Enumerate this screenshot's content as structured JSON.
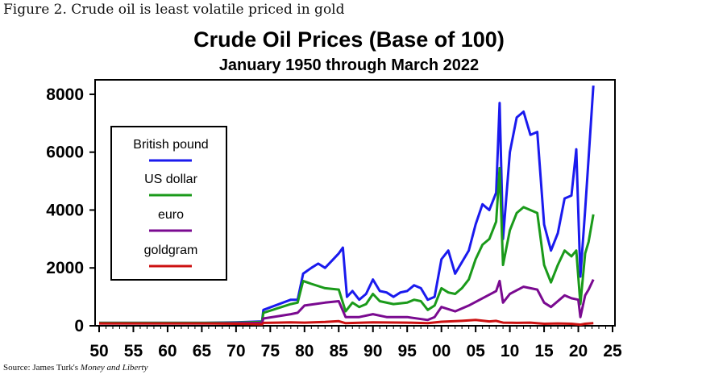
{
  "caption": "Figure 2. Crude oil is least volatile priced in gold",
  "source": {
    "prefix": "Source: James Turk's ",
    "work": "Money and Liberty"
  },
  "chart_data": {
    "type": "line",
    "title": "Crude Oil Prices (Base of 100)",
    "subtitle": "January 1950 through March 2022",
    "xlim": [
      1950,
      2025
    ],
    "ylim": [
      0,
      8500
    ],
    "x_ticks": [
      "50",
      "55",
      "60",
      "65",
      "70",
      "75",
      "80",
      "85",
      "90",
      "95",
      "00",
      "05",
      "10",
      "15",
      "20",
      "25"
    ],
    "y_ticks": [
      "0",
      "2000",
      "4000",
      "6000",
      "8000"
    ],
    "grid": false,
    "legend_position": "left",
    "series": [
      {
        "name": "British pound",
        "color": "#1a1aee",
        "points": [
          [
            1950,
            100
          ],
          [
            1965,
            100
          ],
          [
            1970,
            120
          ],
          [
            1973.8,
            150
          ],
          [
            1974,
            550
          ],
          [
            1978,
            900
          ],
          [
            1979,
            900
          ],
          [
            1979.8,
            1800
          ],
          [
            1981,
            2000
          ],
          [
            1982,
            2150
          ],
          [
            1983,
            2000
          ],
          [
            1984,
            2250
          ],
          [
            1985,
            2500
          ],
          [
            1985.6,
            2700
          ],
          [
            1986.2,
            1000
          ],
          [
            1987,
            1200
          ],
          [
            1988,
            900
          ],
          [
            1989,
            1100
          ],
          [
            1990,
            1600
          ],
          [
            1991,
            1200
          ],
          [
            1992,
            1150
          ],
          [
            1993,
            1000
          ],
          [
            1994,
            1150
          ],
          [
            1995,
            1200
          ],
          [
            1996,
            1400
          ],
          [
            1997,
            1300
          ],
          [
            1998,
            900
          ],
          [
            1999,
            1000
          ],
          [
            2000,
            2300
          ],
          [
            2001,
            2600
          ],
          [
            2002,
            1800
          ],
          [
            2003,
            2200
          ],
          [
            2004,
            2600
          ],
          [
            2005,
            3500
          ],
          [
            2006,
            4200
          ],
          [
            2007,
            4000
          ],
          [
            2008,
            4600
          ],
          [
            2008.5,
            7700
          ],
          [
            2009,
            3000
          ],
          [
            2010,
            6000
          ],
          [
            2011,
            7200
          ],
          [
            2012,
            7400
          ],
          [
            2013,
            6600
          ],
          [
            2014,
            6700
          ],
          [
            2015,
            3500
          ],
          [
            2016,
            2600
          ],
          [
            2017,
            3200
          ],
          [
            2018,
            4400
          ],
          [
            2019,
            4500
          ],
          [
            2019.7,
            6100
          ],
          [
            2020.3,
            1700
          ],
          [
            2021,
            4000
          ],
          [
            2021.5,
            5800
          ],
          [
            2022.2,
            8300
          ]
        ]
      },
      {
        "name": "US dollar",
        "color": "#1a9a1a",
        "points": [
          [
            1950,
            100
          ],
          [
            1965,
            100
          ],
          [
            1970,
            110
          ],
          [
            1973.8,
            130
          ],
          [
            1974,
            450
          ],
          [
            1978,
            750
          ],
          [
            1979,
            800
          ],
          [
            1979.8,
            1550
          ],
          [
            1981,
            1450
          ],
          [
            1983,
            1300
          ],
          [
            1985,
            1250
          ],
          [
            1986,
            500
          ],
          [
            1987,
            800
          ],
          [
            1988,
            650
          ],
          [
            1989,
            750
          ],
          [
            1990,
            1100
          ],
          [
            1991,
            850
          ],
          [
            1993,
            750
          ],
          [
            1995,
            800
          ],
          [
            1996,
            900
          ],
          [
            1997,
            850
          ],
          [
            1998,
            550
          ],
          [
            1999,
            700
          ],
          [
            2000,
            1300
          ],
          [
            2001,
            1150
          ],
          [
            2002,
            1100
          ],
          [
            2003,
            1300
          ],
          [
            2004,
            1600
          ],
          [
            2005,
            2300
          ],
          [
            2006,
            2800
          ],
          [
            2007,
            3000
          ],
          [
            2008,
            3600
          ],
          [
            2008.5,
            5450
          ],
          [
            2009,
            2100
          ],
          [
            2010,
            3300
          ],
          [
            2011,
            3900
          ],
          [
            2012,
            4100
          ],
          [
            2013,
            4000
          ],
          [
            2014,
            3900
          ],
          [
            2015,
            2100
          ],
          [
            2016,
            1500
          ],
          [
            2017,
            2100
          ],
          [
            2018,
            2600
          ],
          [
            2019,
            2400
          ],
          [
            2019.7,
            2600
          ],
          [
            2020.3,
            750
          ],
          [
            2021,
            2500
          ],
          [
            2021.5,
            2900
          ],
          [
            2022.2,
            3850
          ]
        ]
      },
      {
        "name": "euro",
        "color": "#7a0a90",
        "points": [
          [
            1950,
            80
          ],
          [
            1965,
            80
          ],
          [
            1970,
            90
          ],
          [
            1973.8,
            100
          ],
          [
            1974,
            250
          ],
          [
            1978,
            400
          ],
          [
            1979,
            450
          ],
          [
            1980,
            700
          ],
          [
            1983,
            800
          ],
          [
            1985,
            850
          ],
          [
            1986,
            300
          ],
          [
            1988,
            300
          ],
          [
            1990,
            400
          ],
          [
            1992,
            300
          ],
          [
            1995,
            300
          ],
          [
            1998,
            200
          ],
          [
            1999,
            300
          ],
          [
            2000,
            650
          ],
          [
            2002,
            500
          ],
          [
            2004,
            700
          ],
          [
            2006,
            950
          ],
          [
            2008,
            1200
          ],
          [
            2008.5,
            1550
          ],
          [
            2009,
            800
          ],
          [
            2010,
            1100
          ],
          [
            2012,
            1350
          ],
          [
            2014,
            1250
          ],
          [
            2015,
            800
          ],
          [
            2016,
            650
          ],
          [
            2017,
            850
          ],
          [
            2018,
            1050
          ],
          [
            2019,
            950
          ],
          [
            2020,
            900
          ],
          [
            2020.3,
            300
          ],
          [
            2021,
            1050
          ],
          [
            2021.5,
            1250
          ],
          [
            2022.2,
            1600
          ]
        ]
      },
      {
        "name": "goldgram",
        "color": "#cc1111",
        "points": [
          [
            1950,
            80
          ],
          [
            1960,
            80
          ],
          [
            1965,
            80
          ],
          [
            1970,
            70
          ],
          [
            1972,
            60
          ],
          [
            1973.8,
            50
          ],
          [
            1974,
            100
          ],
          [
            1976,
            110
          ],
          [
            1978,
            120
          ],
          [
            1980,
            110
          ],
          [
            1983,
            130
          ],
          [
            1985,
            160
          ],
          [
            1986,
            90
          ],
          [
            1990,
            120
          ],
          [
            1995,
            110
          ],
          [
            1998,
            90
          ],
          [
            2000,
            140
          ],
          [
            2003,
            170
          ],
          [
            2005,
            200
          ],
          [
            2007,
            150
          ],
          [
            2008,
            170
          ],
          [
            2009,
            110
          ],
          [
            2011,
            100
          ],
          [
            2013,
            110
          ],
          [
            2015,
            70
          ],
          [
            2017,
            80
          ],
          [
            2019,
            70
          ],
          [
            2020.3,
            40
          ],
          [
            2021,
            70
          ],
          [
            2022.2,
            90
          ]
        ]
      }
    ]
  }
}
